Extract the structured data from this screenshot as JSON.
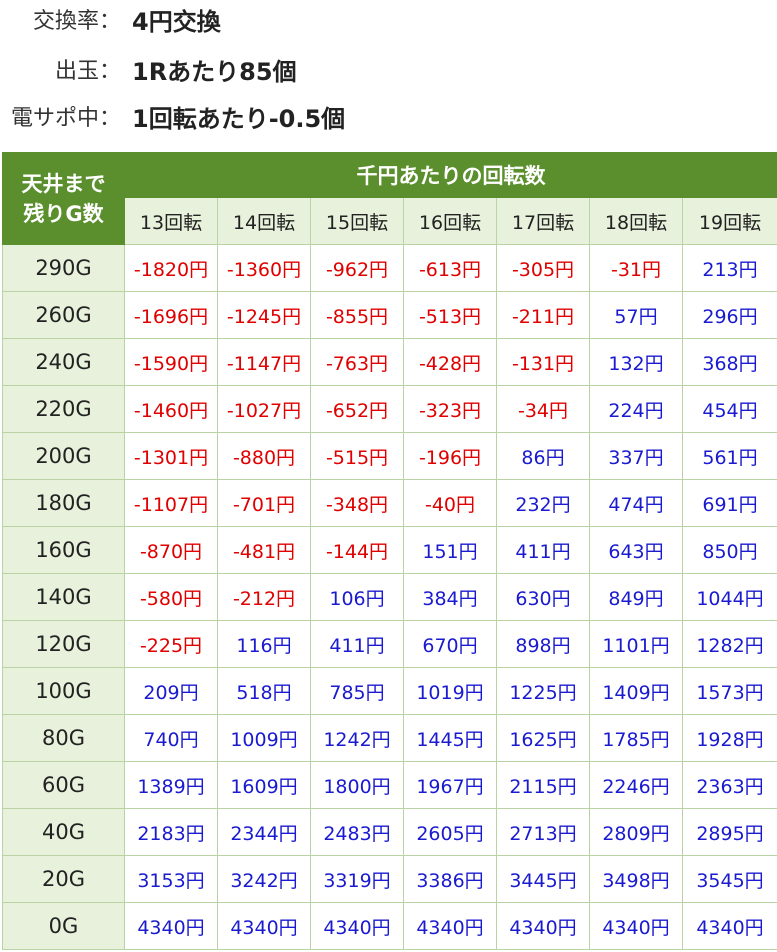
{
  "info": [
    {
      "label": "交換率：",
      "value": "4円交換"
    },
    {
      "label": "出玉：",
      "value": "1Rあたり85個"
    },
    {
      "label": "電サポ中：",
      "value": "1回転あたり-0.5個"
    }
  ],
  "table": {
    "corner_line1": "天井まで",
    "corner_line2": "残りG数",
    "group_header": "千円あたりの回転数",
    "columns": [
      "13回転",
      "14回転",
      "15回転",
      "16回転",
      "17回転",
      "18回転",
      "19回転"
    ],
    "rows": [
      {
        "label": "290G",
        "cells": [
          "-1820円",
          "-1360円",
          "-962円",
          "-613円",
          "-305円",
          "-31円",
          "213円"
        ]
      },
      {
        "label": "260G",
        "cells": [
          "-1696円",
          "-1245円",
          "-855円",
          "-513円",
          "-211円",
          "57円",
          "296円"
        ]
      },
      {
        "label": "240G",
        "cells": [
          "-1590円",
          "-1147円",
          "-763円",
          "-428円",
          "-131円",
          "132円",
          "368円"
        ]
      },
      {
        "label": "220G",
        "cells": [
          "-1460円",
          "-1027円",
          "-652円",
          "-323円",
          "-34円",
          "224円",
          "454円"
        ]
      },
      {
        "label": "200G",
        "cells": [
          "-1301円",
          "-880円",
          "-515円",
          "-196円",
          "86円",
          "337円",
          "561円"
        ]
      },
      {
        "label": "180G",
        "cells": [
          "-1107円",
          "-701円",
          "-348円",
          "-40円",
          "232円",
          "474円",
          "691円"
        ]
      },
      {
        "label": "160G",
        "cells": [
          "-870円",
          "-481円",
          "-144円",
          "151円",
          "411円",
          "643円",
          "850円"
        ]
      },
      {
        "label": "140G",
        "cells": [
          "-580円",
          "-212円",
          "106円",
          "384円",
          "630円",
          "849円",
          "1044円"
        ]
      },
      {
        "label": "120G",
        "cells": [
          "-225円",
          "116円",
          "411円",
          "670円",
          "898円",
          "1101円",
          "1282円"
        ]
      },
      {
        "label": "100G",
        "cells": [
          "209円",
          "518円",
          "785円",
          "1019円",
          "1225円",
          "1409円",
          "1573円"
        ]
      },
      {
        "label": "80G",
        "cells": [
          "740円",
          "1009円",
          "1242円",
          "1445円",
          "1625円",
          "1785円",
          "1928円"
        ]
      },
      {
        "label": "60G",
        "cells": [
          "1389円",
          "1609円",
          "1800円",
          "1967円",
          "2115円",
          "2246円",
          "2363円"
        ]
      },
      {
        "label": "40G",
        "cells": [
          "2183円",
          "2344円",
          "2483円",
          "2605円",
          "2713円",
          "2809円",
          "2895円"
        ]
      },
      {
        "label": "20G",
        "cells": [
          "3153円",
          "3242円",
          "3319円",
          "3386円",
          "3445円",
          "3498円",
          "3545円"
        ]
      },
      {
        "label": "0G",
        "cells": [
          "4340円",
          "4340円",
          "4340円",
          "4340円",
          "4340円",
          "4340円",
          "4340円"
        ]
      }
    ]
  },
  "colors": {
    "header_green": "#5b8f2e",
    "light_green": "#e7f1db",
    "negative": "#e00000",
    "positive": "#1a1ad0"
  }
}
